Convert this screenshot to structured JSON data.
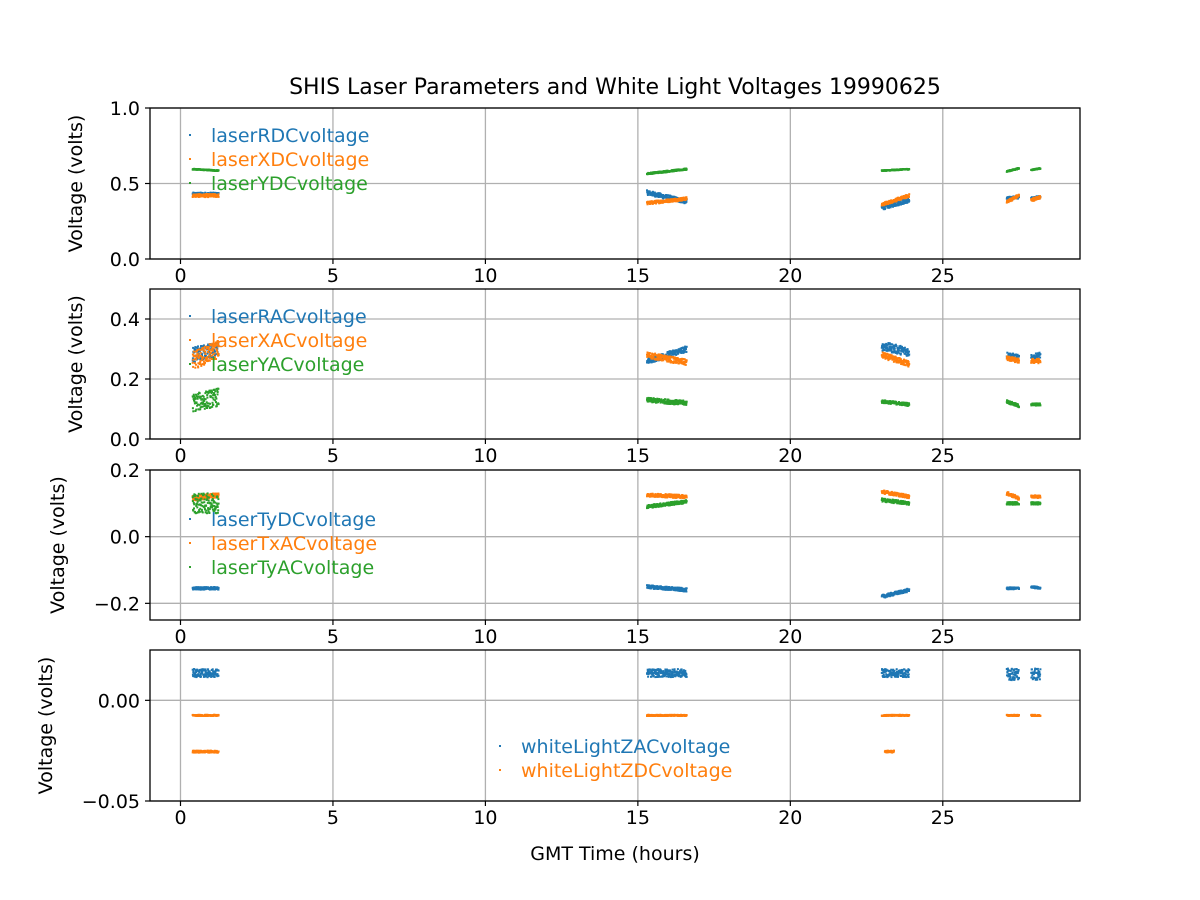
{
  "title": "SHIS Laser Parameters and White Light Voltages 19990625",
  "xlabel": "GMT Time (hours)",
  "colors": {
    "c0": "#1f77b4",
    "c1": "#ff7f0e",
    "c2": "#2ca02c",
    "grid": "#b0b0b0"
  },
  "chart_data": [
    {
      "type": "scatter",
      "ylabel": "Voltage (volts)",
      "xlim": [
        -1,
        29.5
      ],
      "ylim": [
        0,
        1
      ],
      "xticks": [
        0,
        5,
        10,
        15,
        20,
        25
      ],
      "yticks": [
        0,
        0.5,
        1
      ],
      "ytick_labels": [
        "0.0",
        "0.5",
        "1.0"
      ],
      "grid": true,
      "legend_location": "upper left",
      "series": [
        {
          "name": "laserRDCvoltage",
          "color": "#1f77b4",
          "segments": [
            [
              0.4,
              1.25,
              0.43,
              0.43,
              0.02
            ],
            [
              15.3,
              16.6,
              0.44,
              0.38,
              0.03
            ],
            [
              23.0,
              23.9,
              0.34,
              0.39,
              0.03
            ],
            [
              27.1,
              27.5,
              0.4,
              0.41,
              0.02
            ],
            [
              27.9,
              28.2,
              0.4,
              0.41,
              0.02
            ]
          ]
        },
        {
          "name": "laserXDCvoltage",
          "color": "#ff7f0e",
          "segments": [
            [
              0.4,
              1.25,
              0.42,
              0.42,
              0.02
            ],
            [
              15.3,
              16.6,
              0.37,
              0.4,
              0.02
            ],
            [
              23.0,
              23.9,
              0.36,
              0.42,
              0.02
            ],
            [
              27.1,
              27.5,
              0.38,
              0.42,
              0.02
            ],
            [
              27.9,
              28.2,
              0.39,
              0.41,
              0.02
            ]
          ]
        },
        {
          "name": "laserYDCvoltage",
          "color": "#2ca02c",
          "segments": [
            [
              0.4,
              1.25,
              0.595,
              0.585,
              0.006
            ],
            [
              15.3,
              16.6,
              0.565,
              0.595,
              0.01
            ],
            [
              23.0,
              23.9,
              0.585,
              0.595,
              0.006
            ],
            [
              27.1,
              27.5,
              0.58,
              0.6,
              0.008
            ],
            [
              27.9,
              28.2,
              0.59,
              0.6,
              0.006
            ]
          ]
        }
      ]
    },
    {
      "type": "scatter",
      "ylabel": "Voltage (volts)",
      "xlim": [
        -1,
        29.5
      ],
      "ylim": [
        0,
        0.5
      ],
      "xticks": [
        0,
        5,
        10,
        15,
        20,
        25
      ],
      "yticks": [
        0,
        0.2,
        0.4
      ],
      "ytick_labels": [
        "0.0",
        "0.2",
        "0.4"
      ],
      "grid": true,
      "legend_location": "upper left",
      "series": [
        {
          "name": "laserRACvoltage",
          "color": "#1f77b4",
          "segments": [
            [
              0.4,
              1.25,
              0.28,
              0.3,
              0.05
            ],
            [
              15.3,
              16.6,
              0.26,
              0.3,
              0.02
            ],
            [
              23.0,
              23.9,
              0.31,
              0.29,
              0.03
            ],
            [
              27.1,
              27.5,
              0.28,
              0.27,
              0.02
            ],
            [
              27.9,
              28.2,
              0.27,
              0.28,
              0.02
            ]
          ]
        },
        {
          "name": "laserXACvoltage",
          "color": "#ff7f0e",
          "segments": [
            [
              0.4,
              1.25,
              0.26,
              0.3,
              0.06
            ],
            [
              15.3,
              16.6,
              0.28,
              0.255,
              0.02
            ],
            [
              23.0,
              23.9,
              0.28,
              0.25,
              0.02
            ],
            [
              27.1,
              27.5,
              0.27,
              0.26,
              0.015
            ],
            [
              27.9,
              28.2,
              0.26,
              0.26,
              0.015
            ]
          ]
        },
        {
          "name": "laserYACvoltage",
          "color": "#2ca02c",
          "segments": [
            [
              0.4,
              1.25,
              0.12,
              0.14,
              0.06
            ],
            [
              15.3,
              16.6,
              0.13,
              0.12,
              0.015
            ],
            [
              23.0,
              23.9,
              0.125,
              0.115,
              0.01
            ],
            [
              27.1,
              27.5,
              0.125,
              0.11,
              0.01
            ],
            [
              27.9,
              28.2,
              0.115,
              0.115,
              0.008
            ]
          ]
        }
      ]
    },
    {
      "type": "scatter",
      "ylabel": "Voltage (volts)",
      "xlim": [
        -1,
        29.5
      ],
      "ylim": [
        -0.25,
        0.2
      ],
      "xticks": [
        0,
        5,
        10,
        15,
        20,
        25
      ],
      "yticks": [
        -0.2,
        0,
        0.2
      ],
      "ytick_labels": [
        "−0.2",
        "0.0",
        "0.2"
      ],
      "grid": true,
      "legend_location": "center left",
      "series": [
        {
          "name": "laserTyDCvoltage",
          "color": "#1f77b4",
          "segments": [
            [
              0.4,
              1.25,
              -0.155,
              -0.155,
              0.008
            ],
            [
              15.3,
              16.6,
              -0.15,
              -0.16,
              0.01
            ],
            [
              23.0,
              23.9,
              -0.18,
              -0.16,
              0.01
            ],
            [
              27.1,
              27.5,
              -0.155,
              -0.155,
              0.006
            ],
            [
              27.9,
              28.2,
              -0.15,
              -0.155,
              0.006
            ]
          ]
        },
        {
          "name": "laserTxACvoltage",
          "color": "#ff7f0e",
          "segments": [
            [
              0.4,
              1.25,
              0.115,
              0.125,
              0.015
            ],
            [
              15.3,
              16.6,
              0.125,
              0.12,
              0.01
            ],
            [
              23.0,
              23.9,
              0.135,
              0.12,
              0.01
            ],
            [
              27.1,
              27.5,
              0.13,
              0.115,
              0.01
            ],
            [
              27.9,
              28.2,
              0.12,
              0.12,
              0.008
            ]
          ]
        },
        {
          "name": "laserTyACvoltage",
          "color": "#2ca02c",
          "segments": [
            [
              0.4,
              1.25,
              0.1,
              0.1,
              0.06
            ],
            [
              15.3,
              16.6,
              0.09,
              0.105,
              0.01
            ],
            [
              23.0,
              23.9,
              0.11,
              0.1,
              0.01
            ],
            [
              27.1,
              27.5,
              0.1,
              0.1,
              0.008
            ],
            [
              27.9,
              28.2,
              0.1,
              0.1,
              0.008
            ]
          ]
        }
      ]
    },
    {
      "type": "scatter",
      "ylabel": "Voltage (volts)",
      "xlim": [
        -1,
        29.5
      ],
      "ylim": [
        -0.05,
        0.025
      ],
      "xticks": [
        0,
        5,
        10,
        15,
        20,
        25
      ],
      "yticks": [
        -0.05,
        0
      ],
      "ytick_labels": [
        "−0.05",
        "0.00"
      ],
      "grid": true,
      "legend_location": "lower center",
      "series": [
        {
          "name": "whiteLightZACvoltage",
          "color": "#1f77b4",
          "segments": [
            [
              0.4,
              1.25,
              0.0135,
              0.0135,
              0.004
            ],
            [
              15.3,
              16.6,
              0.0135,
              0.0135,
              0.004
            ],
            [
              23.0,
              23.9,
              0.0135,
              0.0135,
              0.004
            ],
            [
              27.1,
              27.5,
              0.013,
              0.013,
              0.006
            ],
            [
              27.9,
              28.2,
              0.013,
              0.013,
              0.006
            ]
          ]
        },
        {
          "name": "whiteLightZDCvoltage",
          "color": "#ff7f0e",
          "segments": [
            [
              0.4,
              1.25,
              -0.0075,
              -0.0075,
              0.0006
            ],
            [
              0.4,
              1.25,
              -0.0255,
              -0.0255,
              0.001
            ],
            [
              15.3,
              16.6,
              -0.0075,
              -0.0075,
              0.0006
            ],
            [
              23.0,
              23.9,
              -0.0075,
              -0.0075,
              0.0006
            ],
            [
              23.1,
              23.4,
              -0.0255,
              -0.0255,
              0.001
            ],
            [
              27.1,
              27.5,
              -0.0075,
              -0.0075,
              0.0006
            ],
            [
              27.9,
              28.2,
              -0.0075,
              -0.0075,
              0.0006
            ]
          ]
        }
      ]
    }
  ]
}
